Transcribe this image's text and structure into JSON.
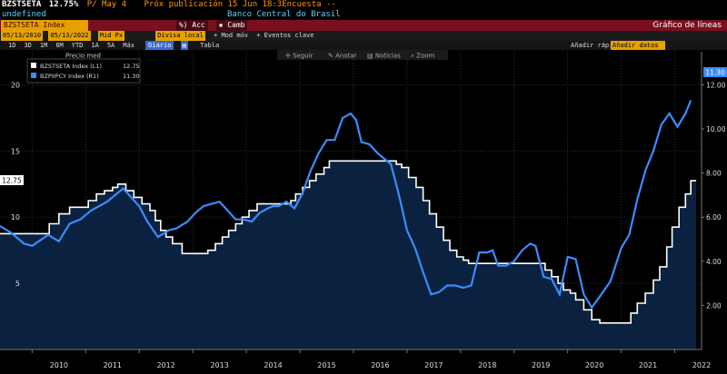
{
  "header": {
    "ticker": "BZSTSETA",
    "value": "12.75%",
    "change": "P/ May 4",
    "next_publication": "Próx publicación 15 Jun 18:3",
    "survey": "Encuesta --",
    "undefined_label": "undefined",
    "source": "Banco Central do Brasil"
  },
  "toolbar": {
    "index_input": "BZSTSETA Index",
    "actions_label": "%) Acc",
    "exchange_label": "Camb",
    "chart_type": "Gráfico de líneas",
    "start_date": "05/13/2010",
    "end_date": "05/13/2022",
    "mid_px": "Mid Px",
    "currency": "Divisa local",
    "mod_mov": "Mod móv",
    "key_events": "Eventos clave"
  },
  "periods": [
    "1D",
    "3D",
    "1M",
    "6M",
    "YTD",
    "1A",
    "5A",
    "Máx"
  ],
  "frequency": "Diario",
  "table_label": "Tabla",
  "quick_add": "Añadir rápido",
  "add_data": "Añadir datos",
  "chart_tools": [
    "Seguir",
    "Anotar",
    "Noticias",
    "Zoom"
  ],
  "legend": {
    "title": "Precio med",
    "items": [
      {
        "label": "BZSTSETA Index  (L1)",
        "value": "12.75",
        "color": "#ffffff"
      },
      {
        "label": "BZPIIPCY Index  (R1)",
        "value": "11.30",
        "color": "#3b8cff"
      }
    ]
  },
  "colors": {
    "selic": "#ffffff",
    "ipca": "#3b8cff",
    "fill": "#0b2140",
    "accent": "#e6a100"
  },
  "chart_data": {
    "type": "line",
    "x_tick_labels": [
      "2010",
      "2011",
      "2012",
      "2013",
      "2014",
      "2015",
      "2016",
      "2017",
      "2018",
      "2019",
      "2020",
      "2021",
      "2022"
    ],
    "left_axis": {
      "ticks": [
        5,
        10,
        15,
        20
      ],
      "range": [
        0,
        22.5
      ]
    },
    "right_axis": {
      "ticks": [
        "2.00",
        "4.00",
        "6.00",
        "8.00",
        "10.00",
        "12.00"
      ],
      "range": [
        0,
        13.5
      ]
    },
    "left_last_label": "12.75",
    "right_last_label": "11.30",
    "series": [
      {
        "name": "BZSTSETA Index",
        "axis": "left",
        "style": "step-area",
        "x": [
          2009.4,
          2010.32,
          2010.5,
          2010.7,
          2010.85,
          2011.05,
          2011.2,
          2011.35,
          2011.5,
          2011.6,
          2011.75,
          2011.9,
          2012.05,
          2012.2,
          2012.3,
          2012.4,
          2012.5,
          2012.62,
          2012.8,
          2013.28,
          2013.42,
          2013.55,
          2013.67,
          2013.8,
          2013.92,
          2014.05,
          2014.2,
          2014.83,
          2014.92,
          2015.05,
          2015.18,
          2015.3,
          2015.45,
          2015.55,
          2016.8,
          2016.9,
          2017.03,
          2017.17,
          2017.3,
          2017.42,
          2017.55,
          2017.68,
          2017.8,
          2017.93,
          2018.05,
          2018.15,
          2018.25,
          2019.58,
          2019.7,
          2019.82,
          2019.92,
          2020.05,
          2020.15,
          2020.3,
          2020.45,
          2020.6,
          2021.18,
          2021.3,
          2021.45,
          2021.6,
          2021.72,
          2021.85,
          2021.95,
          2022.08,
          2022.2,
          2022.3,
          2022.4
        ],
        "y": [
          8.75,
          9.5,
          10.25,
          10.75,
          10.75,
          11.25,
          11.75,
          12.0,
          12.25,
          12.5,
          12.0,
          11.5,
          11.0,
          10.5,
          9.75,
          9.0,
          8.5,
          8.0,
          7.25,
          7.5,
          8.0,
          8.5,
          9.0,
          9.5,
          10.0,
          10.5,
          11.0,
          11.25,
          11.75,
          12.25,
          12.75,
          13.25,
          13.75,
          14.25,
          14.0,
          13.75,
          13.0,
          12.25,
          11.25,
          10.25,
          9.25,
          8.25,
          7.5,
          7.0,
          6.75,
          6.5,
          6.5,
          6.0,
          5.5,
          5.0,
          4.5,
          4.25,
          3.75,
          3.0,
          2.25,
          2.0,
          2.75,
          3.5,
          4.25,
          5.25,
          6.25,
          7.75,
          9.25,
          10.75,
          11.75,
          12.75,
          12.75
        ]
      },
      {
        "name": "BZPIIPCY Index",
        "axis": "right",
        "style": "line",
        "x": [
          2009.4,
          2009.6,
          2009.85,
          2010.0,
          2010.3,
          2010.5,
          2010.7,
          2010.9,
          2011.1,
          2011.25,
          2011.4,
          2011.55,
          2011.7,
          2011.85,
          2012.0,
          2012.15,
          2012.35,
          2012.55,
          2012.7,
          2012.9,
          2013.05,
          2013.2,
          2013.35,
          2013.5,
          2013.65,
          2013.8,
          2013.95,
          2014.1,
          2014.25,
          2014.4,
          2014.5,
          2014.6,
          2014.75,
          2014.9,
          2015.05,
          2015.2,
          2015.35,
          2015.5,
          2015.65,
          2015.8,
          2015.95,
          2016.05,
          2016.15,
          2016.3,
          2016.45,
          2016.55,
          2016.7,
          2016.85,
          2017.0,
          2017.15,
          2017.3,
          2017.45,
          2017.6,
          2017.75,
          2017.9,
          2018.05,
          2018.2,
          2018.35,
          2018.5,
          2018.6,
          2018.7,
          2018.85,
          2019.0,
          2019.15,
          2019.3,
          2019.4,
          2019.55,
          2019.7,
          2019.85,
          2020.0,
          2020.15,
          2020.3,
          2020.45,
          2020.6,
          2020.8,
          2021.0,
          2021.15,
          2021.3,
          2021.45,
          2021.6,
          2021.75,
          2021.9,
          2022.05,
          2022.2,
          2022.3
        ],
        "y": [
          5.6,
          5.3,
          4.8,
          4.7,
          5.2,
          4.9,
          5.7,
          5.9,
          6.3,
          6.5,
          6.7,
          7.0,
          7.3,
          6.9,
          6.5,
          5.8,
          5.1,
          5.4,
          5.5,
          5.8,
          6.2,
          6.5,
          6.6,
          6.7,
          6.3,
          5.9,
          5.9,
          5.8,
          6.2,
          6.4,
          6.5,
          6.5,
          6.7,
          6.4,
          7.1,
          8.1,
          8.9,
          9.5,
          9.5,
          10.5,
          10.7,
          10.4,
          9.4,
          9.3,
          8.9,
          8.7,
          8.4,
          7.0,
          5.4,
          4.6,
          3.5,
          2.5,
          2.6,
          2.9,
          2.9,
          2.8,
          2.9,
          4.4,
          4.4,
          4.5,
          3.8,
          3.8,
          4.0,
          4.5,
          4.8,
          4.7,
          3.3,
          3.2,
          2.5,
          4.2,
          4.1,
          2.5,
          1.9,
          2.4,
          3.1,
          4.6,
          5.2,
          6.8,
          8.1,
          9.0,
          10.2,
          10.7,
          10.1,
          10.7,
          11.3
        ]
      }
    ]
  }
}
